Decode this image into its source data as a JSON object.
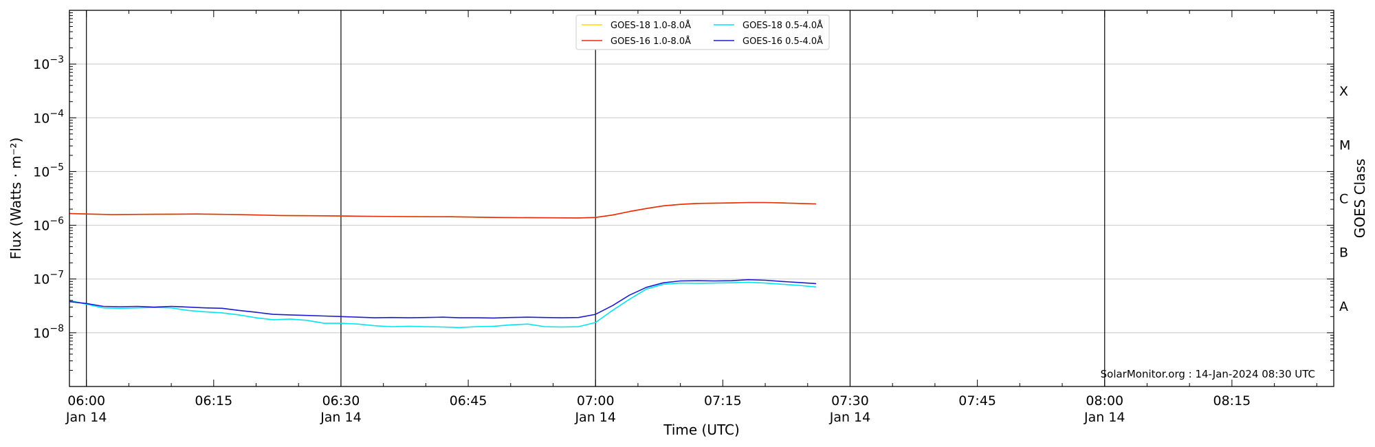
{
  "chart_data": {
    "type": "line",
    "xlabel": "Time (UTC)",
    "ylabel": "Flux (Watts · m⁻²)",
    "right_label": "GOES Class",
    "credit": "SolarMonitor.org : 14-Jan-2024 08:30 UTC",
    "xlim": [
      "05:58",
      "08:27"
    ],
    "ylim": [
      1e-09,
      0.01
    ],
    "yscale": "log",
    "grid": "horizontal",
    "legend_position": "top-center",
    "x_ticks": [
      {
        "time": "06:00",
        "label": "06:00",
        "sublabel": "Jan 14"
      },
      {
        "time": "06:15",
        "label": "06:15",
        "sublabel": ""
      },
      {
        "time": "06:30",
        "label": "06:30",
        "sublabel": "Jan 14"
      },
      {
        "time": "06:45",
        "label": "06:45",
        "sublabel": ""
      },
      {
        "time": "07:00",
        "label": "07:00",
        "sublabel": "Jan 14"
      },
      {
        "time": "07:15",
        "label": "07:15",
        "sublabel": ""
      },
      {
        "time": "07:30",
        "label": "07:30",
        "sublabel": "Jan 14"
      },
      {
        "time": "07:45",
        "label": "07:45",
        "sublabel": ""
      },
      {
        "time": "08:00",
        "label": "08:00",
        "sublabel": "Jan 14"
      },
      {
        "time": "08:15",
        "label": "08:15",
        "sublabel": ""
      }
    ],
    "day_lines": [
      "06:00",
      "06:30",
      "07:00",
      "07:30",
      "08:00"
    ],
    "y_ticks": [
      {
        "exp": -3,
        "base": "10",
        "sup": "−3"
      },
      {
        "exp": -4,
        "base": "10",
        "sup": "−4"
      },
      {
        "exp": -5,
        "base": "10",
        "sup": "−5"
      },
      {
        "exp": -6,
        "base": "10",
        "sup": "−6"
      },
      {
        "exp": -7,
        "base": "10",
        "sup": "−7"
      },
      {
        "exp": -8,
        "base": "10",
        "sup": "−8"
      }
    ],
    "goes_classes": [
      {
        "label": "X",
        "exp": -3.5
      },
      {
        "label": "M",
        "exp": -4.5
      },
      {
        "label": "C",
        "exp": -5.5
      },
      {
        "label": "B",
        "exp": -6.5
      },
      {
        "label": "A",
        "exp": -7.5
      }
    ],
    "series": [
      {
        "name": "GOES-18 1.0-8.0Å",
        "color": "#ffd700",
        "x": [
          "05:58",
          "06:03",
          "06:08",
          "06:13",
          "06:18",
          "06:23",
          "06:28",
          "06:33",
          "06:38",
          "06:43",
          "06:48",
          "06:53",
          "06:58",
          "07:00",
          "07:02",
          "07:04",
          "07:06",
          "07:08",
          "07:10",
          "07:12",
          "07:14",
          "07:16",
          "07:18",
          "07:20",
          "07:22",
          "07:24",
          "07:26"
        ],
        "y": [
          1.65e-06,
          1.58e-06,
          1.6e-06,
          1.62e-06,
          1.58e-06,
          1.52e-06,
          1.5e-06,
          1.47e-06,
          1.45e-06,
          1.44e-06,
          1.4e-06,
          1.38e-06,
          1.37e-06,
          1.4e-06,
          1.55e-06,
          1.8e-06,
          2.05e-06,
          2.3e-06,
          2.45e-06,
          2.55e-06,
          2.58e-06,
          2.6e-06,
          2.65e-06,
          2.65e-06,
          2.6e-06,
          2.55e-06,
          2.5e-06
        ]
      },
      {
        "name": "GOES-16 1.0-8.0Å",
        "color": "#e8290b",
        "x": [
          "05:58",
          "06:03",
          "06:08",
          "06:13",
          "06:18",
          "06:23",
          "06:28",
          "06:33",
          "06:38",
          "06:43",
          "06:48",
          "06:53",
          "06:58",
          "07:00",
          "07:02",
          "07:04",
          "07:06",
          "07:08",
          "07:10",
          "07:12",
          "07:14",
          "07:16",
          "07:18",
          "07:20",
          "07:22",
          "07:24",
          "07:26"
        ],
        "y": [
          1.65e-06,
          1.58e-06,
          1.6e-06,
          1.62e-06,
          1.58e-06,
          1.52e-06,
          1.5e-06,
          1.47e-06,
          1.45e-06,
          1.44e-06,
          1.4e-06,
          1.38e-06,
          1.37e-06,
          1.4e-06,
          1.55e-06,
          1.8e-06,
          2.05e-06,
          2.3e-06,
          2.45e-06,
          2.55e-06,
          2.58e-06,
          2.6e-06,
          2.65e-06,
          2.65e-06,
          2.6e-06,
          2.55e-06,
          2.5e-06
        ]
      },
      {
        "name": "GOES-18 0.5-4.0Å",
        "color": "#00e5ee",
        "x": [
          "05:58",
          "06:00",
          "06:02",
          "06:04",
          "06:06",
          "06:08",
          "06:10",
          "06:12",
          "06:14",
          "06:16",
          "06:18",
          "06:20",
          "06:22",
          "06:24",
          "06:26",
          "06:28",
          "06:30",
          "06:32",
          "06:34",
          "06:36",
          "06:38",
          "06:40",
          "06:42",
          "06:44",
          "06:46",
          "06:48",
          "06:50",
          "06:52",
          "06:54",
          "06:56",
          "06:58",
          "07:00",
          "07:02",
          "07:04",
          "07:06",
          "07:08",
          "07:10",
          "07:12",
          "07:14",
          "07:16",
          "07:18",
          "07:20",
          "07:22",
          "07:24",
          "07:26"
        ],
        "y": [
          4e-08,
          3.4e-08,
          2.9e-08,
          2.85e-08,
          2.9e-08,
          2.95e-08,
          2.9e-08,
          2.6e-08,
          2.45e-08,
          2.35e-08,
          2.15e-08,
          1.9e-08,
          1.75e-08,
          1.8e-08,
          1.7e-08,
          1.5e-08,
          1.5e-08,
          1.45e-08,
          1.35e-08,
          1.3e-08,
          1.32e-08,
          1.3e-08,
          1.28e-08,
          1.25e-08,
          1.3e-08,
          1.32e-08,
          1.4e-08,
          1.45e-08,
          1.3e-08,
          1.28e-08,
          1.3e-08,
          1.55e-08,
          2.6e-08,
          4.2e-08,
          6.5e-08,
          8e-08,
          8.4e-08,
          8.3e-08,
          8.4e-08,
          8.5e-08,
          8.7e-08,
          8.4e-08,
          8e-08,
          7.6e-08,
          7.1e-08
        ]
      },
      {
        "name": "GOES-16 0.5-4.0Å",
        "color": "#1a1ad6",
        "x": [
          "05:58",
          "06:00",
          "06:02",
          "06:04",
          "06:06",
          "06:08",
          "06:10",
          "06:12",
          "06:14",
          "06:16",
          "06:18",
          "06:20",
          "06:22",
          "06:24",
          "06:26",
          "06:28",
          "06:30",
          "06:32",
          "06:34",
          "06:36",
          "06:38",
          "06:40",
          "06:42",
          "06:44",
          "06:46",
          "06:48",
          "06:50",
          "06:52",
          "06:54",
          "06:56",
          "06:58",
          "07:00",
          "07:02",
          "07:04",
          "07:06",
          "07:08",
          "07:10",
          "07:12",
          "07:14",
          "07:16",
          "07:18",
          "07:20",
          "07:22",
          "07:24",
          "07:26"
        ],
        "y": [
          3.8e-08,
          3.5e-08,
          3.1e-08,
          3.05e-08,
          3.1e-08,
          3e-08,
          3.1e-08,
          3e-08,
          2.9e-08,
          2.85e-08,
          2.6e-08,
          2.4e-08,
          2.2e-08,
          2.15e-08,
          2.1e-08,
          2.05e-08,
          2e-08,
          1.95e-08,
          1.9e-08,
          1.92e-08,
          1.9e-08,
          1.92e-08,
          1.95e-08,
          1.9e-08,
          1.9e-08,
          1.88e-08,
          1.92e-08,
          1.95e-08,
          1.92e-08,
          1.9e-08,
          1.92e-08,
          2.2e-08,
          3.2e-08,
          5e-08,
          7e-08,
          8.5e-08,
          9.2e-08,
          9.3e-08,
          9.2e-08,
          9.3e-08,
          9.7e-08,
          9.5e-08,
          9e-08,
          8.6e-08,
          8.2e-08
        ]
      }
    ]
  }
}
